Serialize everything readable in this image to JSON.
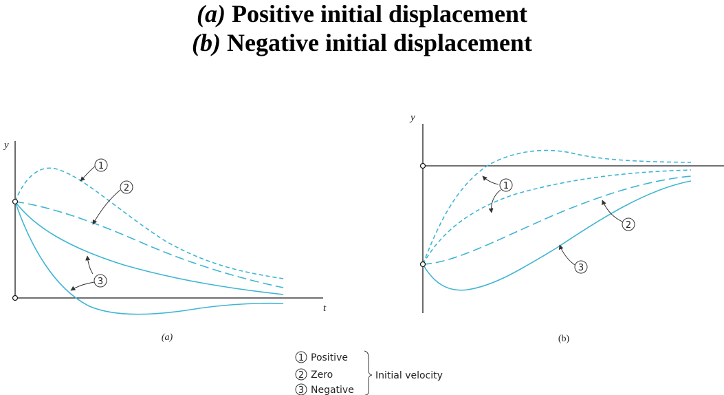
{
  "title": {
    "line_a": {
      "marker": "(a)",
      "text": "Positive initial displacement"
    },
    "line_b": {
      "marker": "(b)",
      "text": "Negative initial displacement"
    }
  },
  "panel_a": {
    "caption": "(a)",
    "y_label": "y",
    "t_label": "t"
  },
  "panel_b": {
    "caption": "(b)",
    "y_label": "y"
  },
  "callouts": {
    "one": "1",
    "two": "2",
    "three": "3"
  },
  "legend": {
    "items": [
      {
        "number": "1",
        "label": "Positive"
      },
      {
        "number": "2",
        "label": "Zero"
      },
      {
        "number": "3",
        "label": "Negative"
      }
    ],
    "group_label": "Initial velocity"
  },
  "colors": {
    "curve": "#3fb5d3",
    "axis": "#1a1a1a"
  }
}
